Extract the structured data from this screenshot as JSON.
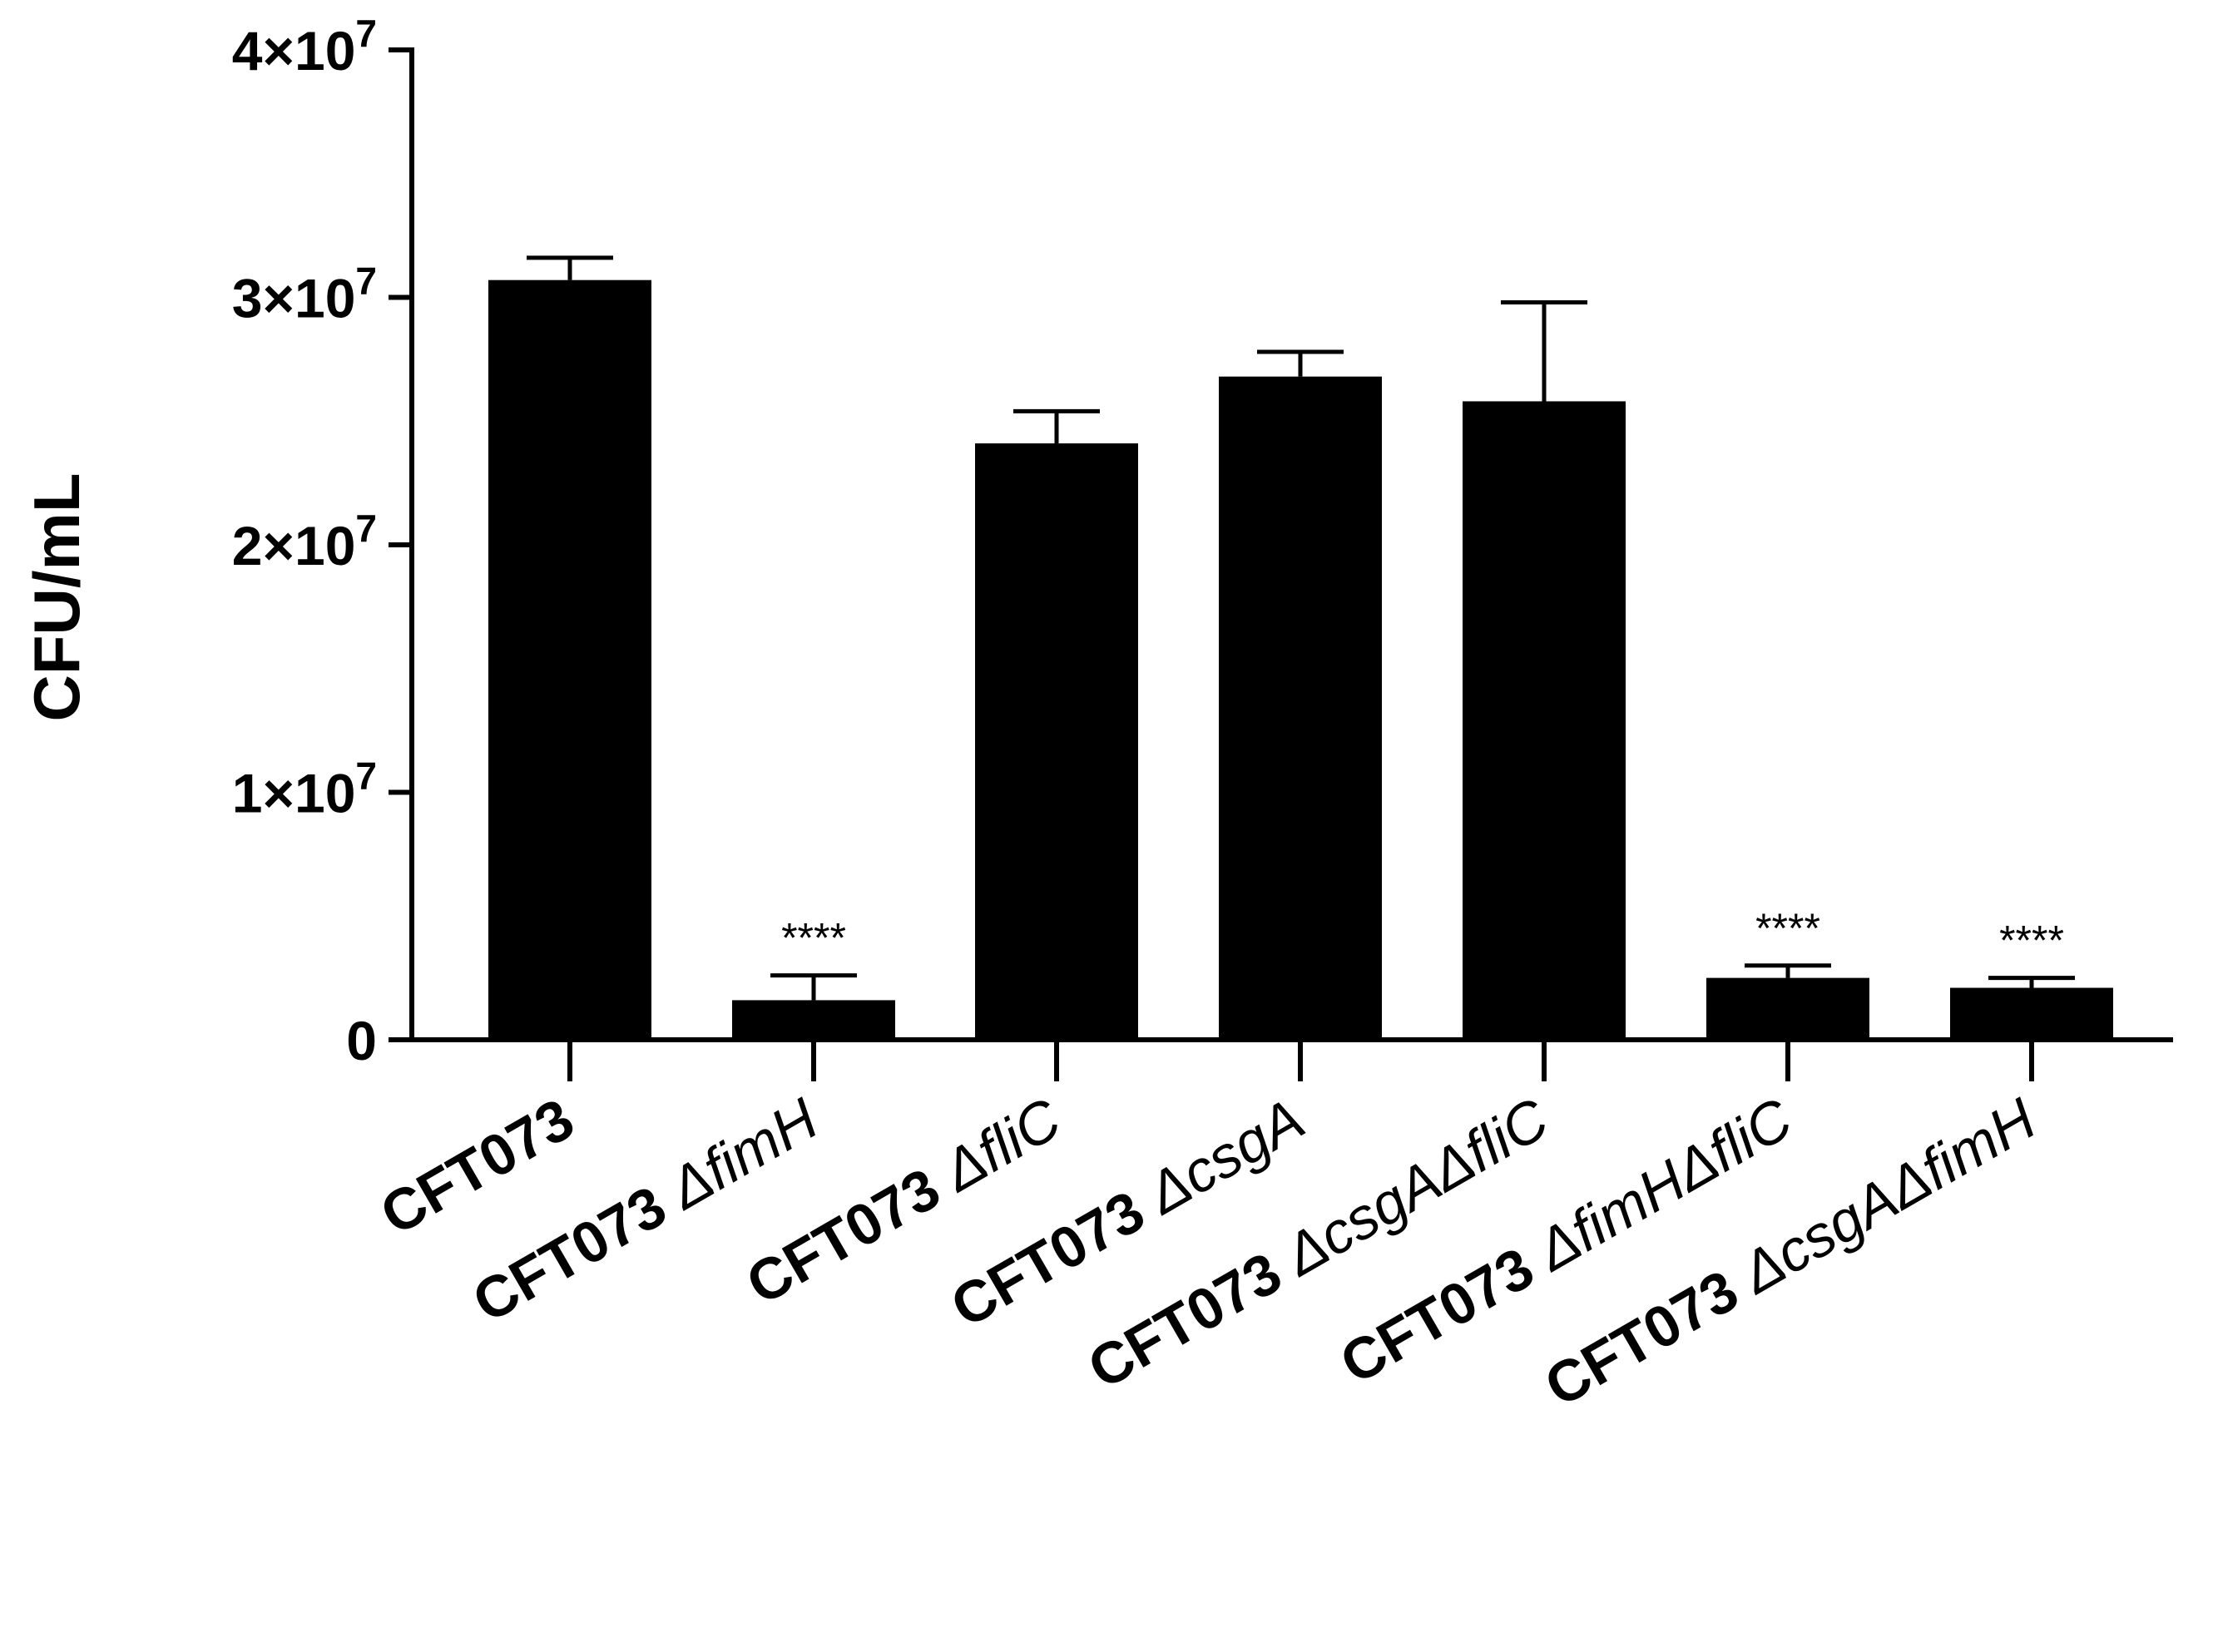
{
  "chart_data": {
    "type": "bar",
    "title": "",
    "xlabel": "",
    "ylabel": "CFU/mL",
    "ylim": [
      0,
      40000000
    ],
    "y_ticks": [
      {
        "value": 0,
        "base": "0",
        "exp": ""
      },
      {
        "value": 10000000,
        "base": "1×10",
        "exp": "7"
      },
      {
        "value": 20000000,
        "base": "2×10",
        "exp": "7"
      },
      {
        "value": 30000000,
        "base": "3×10",
        "exp": "7"
      },
      {
        "value": 40000000,
        "base": "4×10",
        "exp": "7"
      }
    ],
    "categories": [
      {
        "strain": "CFT073",
        "mutation": ""
      },
      {
        "strain": "CFT073 ",
        "mutation": "ΔfimH"
      },
      {
        "strain": "CFT073 ",
        "mutation": "ΔfliC"
      },
      {
        "strain": "CFT073 ",
        "mutation": "ΔcsgA"
      },
      {
        "strain": "CFT073 ",
        "mutation": "ΔcsgAΔfliC"
      },
      {
        "strain": "CFT073 ",
        "mutation": "ΔfimHΔfliC"
      },
      {
        "strain": "CFT073 ",
        "mutation": "ΔcsgAΔfimH"
      }
    ],
    "values": [
      30700000,
      1600000,
      24100000,
      26800000,
      25800000,
      2500000,
      2100000
    ],
    "error_upper": [
      31600000,
      2600000,
      25400000,
      27800000,
      29800000,
      3000000,
      2500000
    ],
    "significance": [
      "",
      "****",
      "",
      "",
      "",
      "****",
      "****"
    ],
    "bar_color": "#000000",
    "grid": false,
    "legend": "none"
  }
}
